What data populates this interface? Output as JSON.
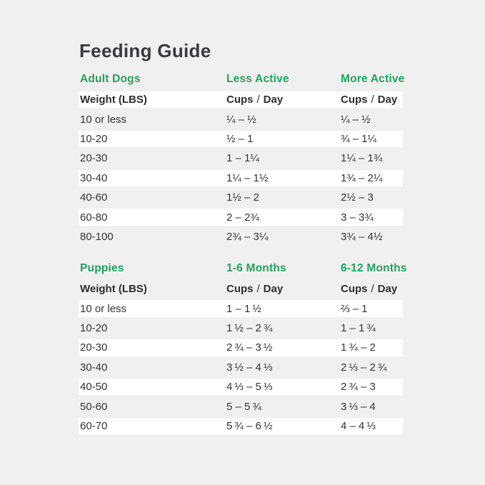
{
  "title": "Feeding Guide",
  "colors": {
    "background": "#f0f0f1",
    "row_white": "#ffffff",
    "accent_green": "#25a05d",
    "text_dark": "#3a3a3c"
  },
  "tables": [
    {
      "section": "Adult Dogs",
      "columns": [
        "Less Active",
        "More Active"
      ],
      "subheader": {
        "weight": "Weight (LBS)",
        "cups": "Cups",
        "slash": "/",
        "day": "Day"
      },
      "rows": [
        {
          "weight": "10 or less",
          "less": "¼ – ½",
          "more": "¼ – ½"
        },
        {
          "weight": "10-20",
          "less": "½ – 1",
          "more": "¾ – 1¼"
        },
        {
          "weight": "20-30",
          "less": "1 – 1¼",
          "more": "1¼ – 1¾"
        },
        {
          "weight": "30-40",
          "less": "1¼ – 1½",
          "more": "1¾ – 2¼"
        },
        {
          "weight": "40-60",
          "less": "1½ – 2",
          "more": "2½ – 3"
        },
        {
          "weight": "60-80",
          "less": "2 – 2¾",
          "more": "3 – 3¾"
        },
        {
          "weight": "80-100",
          "less": "2¾ – 3¼",
          "more": "3¾ – 4½"
        }
      ]
    },
    {
      "section": "Puppies",
      "columns": [
        "1-6 Months",
        "6-12 Months"
      ],
      "subheader": {
        "weight": "Weight (LBS)",
        "cups": "Cups",
        "slash": "/",
        "day": "Day"
      },
      "rows": [
        {
          "weight": "10 or less",
          "less": "1 – 1 ½",
          "more": "⅔ – 1"
        },
        {
          "weight": "10-20",
          "less": "1 ½ – 2 ¾",
          "more": "1 – 1 ¾"
        },
        {
          "weight": "20-30",
          "less": "2 ¾ – 3 ½",
          "more": "1 ¾ – 2"
        },
        {
          "weight": "30-40",
          "less": "3 ½ – 4 ⅓",
          "more": "2 ⅓ – 2 ¾"
        },
        {
          "weight": "40-50",
          "less": "4 ⅓ – 5 ⅓",
          "more": "2 ¾ – 3"
        },
        {
          "weight": "50-60",
          "less": "5 – 5 ¾",
          "more": "3 ⅓ – 4"
        },
        {
          "weight": "60-70",
          "less": "5 ¾ – 6 ½",
          "more": "4 – 4 ⅓"
        }
      ]
    }
  ],
  "chart_data": [
    {
      "type": "table",
      "title": "Feeding Guide — Adult Dogs",
      "columns": [
        "Weight (LBS)",
        "Less Active Cups / Day",
        "More Active Cups / Day"
      ],
      "rows": [
        [
          "10 or less",
          "¼ – ½",
          "¼ – ½"
        ],
        [
          "10-20",
          "½ – 1",
          "¾ – 1¼"
        ],
        [
          "20-30",
          "1 – 1¼",
          "1¼ – 1¾"
        ],
        [
          "30-40",
          "1¼ – 1½",
          "1¾ – 2¼"
        ],
        [
          "40-60",
          "1½ – 2",
          "2½ – 3"
        ],
        [
          "60-80",
          "2 – 2¾",
          "3 – 3¾"
        ],
        [
          "80-100",
          "2¾ – 3¼",
          "3¾ – 4½"
        ]
      ]
    },
    {
      "type": "table",
      "title": "Feeding Guide — Puppies",
      "columns": [
        "Weight (LBS)",
        "1-6 Months Cups / Day",
        "6-12 Months Cups / Day"
      ],
      "rows": [
        [
          "10 or less",
          "1 – 1½",
          "⅔ – 1"
        ],
        [
          "10-20",
          "1½ – 2¾",
          "1 – 1¾"
        ],
        [
          "20-30",
          "2¾ – 3½",
          "1¾ – 2"
        ],
        [
          "30-40",
          "3½ – 4⅓",
          "2⅓ – 2¾"
        ],
        [
          "40-50",
          "4⅓ – 5⅓",
          "2¾ – 3"
        ],
        [
          "50-60",
          "5 – 5¾",
          "3⅓ – 4"
        ],
        [
          "60-70",
          "5¾ – 6½",
          "4 – 4⅓"
        ]
      ]
    }
  ]
}
